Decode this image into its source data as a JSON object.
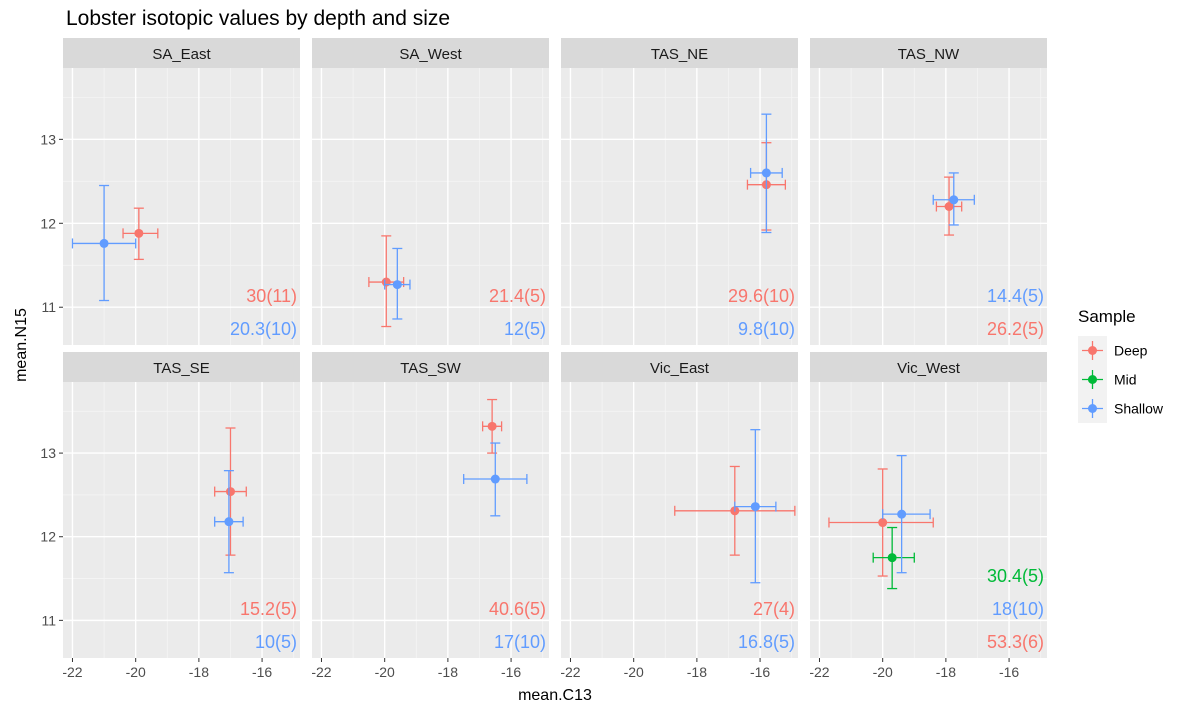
{
  "chart_data": {
    "type": "scatter",
    "title": "Lobster isotopic values by depth and size",
    "xlabel": "mean.C13",
    "ylabel": "mean.N15",
    "xlim": [
      -22.3,
      -14.8
    ],
    "ylim": [
      10.55,
      13.85
    ],
    "x_ticks": [
      -22,
      -20,
      -18,
      -16
    ],
    "y_ticks": [
      11,
      12,
      13
    ],
    "grid": true,
    "facet_layout": "2 rows x 4 columns",
    "legend": {
      "title": "Sample",
      "position": "right",
      "entries": [
        {
          "name": "Deep",
          "color": "#F8766D"
        },
        {
          "name": "Mid",
          "color": "#00BA38"
        },
        {
          "name": "Shallow",
          "color": "#619CFF"
        }
      ]
    },
    "panels": [
      {
        "name": "SA_East",
        "points": [
          {
            "series": "Deep",
            "x": -19.9,
            "y": 11.88,
            "xmin": -20.4,
            "xmax": -19.3,
            "ymin": 11.57,
            "ymax": 12.18
          },
          {
            "series": "Shallow",
            "x": -21.0,
            "y": 11.76,
            "xmin": -22.0,
            "xmax": -20.0,
            "ymin": 11.08,
            "ymax": 12.45
          }
        ],
        "labels": [
          {
            "series": "Deep",
            "text": "30(11)"
          },
          {
            "series": "Shallow",
            "text": "20.3(10)"
          }
        ]
      },
      {
        "name": "SA_West",
        "points": [
          {
            "series": "Deep",
            "x": -19.95,
            "y": 11.3,
            "xmin": -20.5,
            "xmax": -19.4,
            "ymin": 10.77,
            "ymax": 11.85
          },
          {
            "series": "Shallow",
            "x": -19.6,
            "y": 11.27,
            "xmin": -20.0,
            "xmax": -19.2,
            "ymin": 10.86,
            "ymax": 11.7
          }
        ],
        "labels": [
          {
            "series": "Deep",
            "text": "21.4(5)"
          },
          {
            "series": "Shallow",
            "text": "12(5)"
          }
        ]
      },
      {
        "name": "TAS_NE",
        "points": [
          {
            "series": "Deep",
            "x": -15.8,
            "y": 12.46,
            "xmin": -16.4,
            "xmax": -15.2,
            "ymin": 11.92,
            "ymax": 12.96
          },
          {
            "series": "Shallow",
            "x": -15.8,
            "y": 12.6,
            "xmin": -16.3,
            "xmax": -15.3,
            "ymin": 11.89,
            "ymax": 13.3
          }
        ],
        "labels": [
          {
            "series": "Deep",
            "text": "29.6(10)"
          },
          {
            "series": "Shallow",
            "text": "9.8(10)"
          }
        ]
      },
      {
        "name": "TAS_NW",
        "points": [
          {
            "series": "Deep",
            "x": -17.9,
            "y": 12.2,
            "xmin": -18.3,
            "xmax": -17.5,
            "ymin": 11.86,
            "ymax": 12.55
          },
          {
            "series": "Shallow",
            "x": -17.75,
            "y": 12.28,
            "xmin": -18.4,
            "xmax": -17.1,
            "ymin": 11.98,
            "ymax": 12.6
          }
        ],
        "labels": [
          {
            "series": "Shallow",
            "text": "14.4(5)"
          },
          {
            "series": "Deep",
            "text": "26.2(5)"
          }
        ]
      },
      {
        "name": "TAS_SE",
        "points": [
          {
            "series": "Deep",
            "x": -17.0,
            "y": 12.54,
            "xmin": -17.5,
            "xmax": -16.5,
            "ymin": 11.78,
            "ymax": 13.3
          },
          {
            "series": "Shallow",
            "x": -17.05,
            "y": 12.18,
            "xmin": -17.5,
            "xmax": -16.6,
            "ymin": 11.57,
            "ymax": 12.79
          }
        ],
        "labels": [
          {
            "series": "Deep",
            "text": "15.2(5)"
          },
          {
            "series": "Shallow",
            "text": "10(5)"
          }
        ]
      },
      {
        "name": "TAS_SW",
        "points": [
          {
            "series": "Deep",
            "x": -16.6,
            "y": 13.32,
            "xmin": -16.9,
            "xmax": -16.3,
            "ymin": 13.0,
            "ymax": 13.64
          },
          {
            "series": "Shallow",
            "x": -16.5,
            "y": 12.69,
            "xmin": -17.5,
            "xmax": -15.5,
            "ymin": 12.25,
            "ymax": 13.12
          }
        ],
        "labels": [
          {
            "series": "Deep",
            "text": "40.6(5)"
          },
          {
            "series": "Shallow",
            "text": "17(10)"
          }
        ]
      },
      {
        "name": "Vic_East",
        "points": [
          {
            "series": "Deep",
            "x": -16.8,
            "y": 12.31,
            "xmin": -18.7,
            "xmax": -14.9,
            "ymin": 11.78,
            "ymax": 12.84
          },
          {
            "series": "Shallow",
            "x": -16.15,
            "y": 12.36,
            "xmin": -16.8,
            "xmax": -15.5,
            "ymin": 11.45,
            "ymax": 13.28
          }
        ],
        "labels": [
          {
            "series": "Deep",
            "text": "27(4)"
          },
          {
            "series": "Shallow",
            "text": "16.8(5)"
          }
        ]
      },
      {
        "name": "Vic_West",
        "points": [
          {
            "series": "Deep",
            "x": -20.0,
            "y": 12.17,
            "xmin": -21.7,
            "xmax": -18.4,
            "ymin": 11.53,
            "ymax": 12.81
          },
          {
            "series": "Mid",
            "x": -19.7,
            "y": 11.75,
            "xmin": -20.3,
            "xmax": -19.0,
            "ymin": 11.38,
            "ymax": 12.11
          },
          {
            "series": "Shallow",
            "x": -19.4,
            "y": 12.27,
            "xmin": -20.0,
            "xmax": -18.5,
            "ymin": 11.57,
            "ymax": 12.97
          }
        ],
        "labels": [
          {
            "series": "Mid",
            "text": "30.4(5)"
          },
          {
            "series": "Shallow",
            "text": "18(10)"
          },
          {
            "series": "Deep",
            "text": "53.3(6)"
          }
        ]
      }
    ]
  }
}
